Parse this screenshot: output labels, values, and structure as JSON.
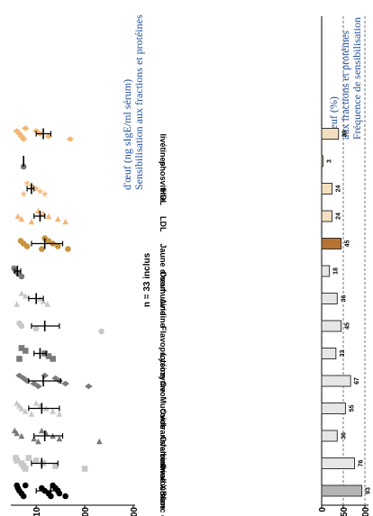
{
  "chart_data": [
    {
      "type": "bar",
      "title": "Fréquence de sensibilisation aux fractions et protéines d'œuf (%)",
      "annotation": "n = 33 inclus",
      "categories": [
        "Blanc d'œuf",
        "Ovalbumine",
        "Ovalbumine X",
        "Ovotransferrine",
        "OvoMucoïde",
        "Lysozyme",
        "Flavoprotéine",
        "Avidine",
        "Ovomucine",
        "Jaune d'œuf",
        "LDL",
        "HDL",
        "phosvitine",
        "livétines"
      ],
      "values": [
        93,
        76,
        36,
        55,
        67,
        33,
        45,
        36,
        18,
        45,
        24,
        24,
        3,
        39
      ],
      "value_labels": [
        "93",
        "76",
        "36",
        "55",
        "67",
        "33",
        "45",
        "36",
        "18",
        "45",
        "24",
        "24",
        "3",
        "39"
      ],
      "ylim": [
        0,
        100
      ],
      "yticks": [
        "0",
        "50",
        "100"
      ],
      "reference_lines": [
        50,
        100
      ],
      "colors": {
        "blanc": "#8c8c8c",
        "blanc_fill": "#b4b4b4",
        "protein": "#e6e6e6",
        "jaune": "#b87333",
        "yolk": "#f2e0c0"
      }
    },
    {
      "type": "scatter",
      "title": "Sensibilisation aux fractions et protéines d'œuf (ng sIgE/ml sérum)",
      "y_scale": "log",
      "yticks": [
        "10",
        "100",
        "1000"
      ],
      "ylim": [
        3,
        1000
      ],
      "categories": [
        "Blanc d'œuf",
        "Ovalbumine",
        "Ovalbumine X",
        "Ovotransferrine",
        "OvoMucoïde",
        "Lysozyme",
        "Flavoprotéine",
        "Avidine",
        "Ovomucine",
        "Jaune d'œuf",
        "LDL",
        "HDL",
        "phosvitine",
        "livétines"
      ],
      "markers": [
        "circle",
        "square",
        "triangle",
        "triangle",
        "diamond",
        "square",
        "circle",
        "triangle",
        "circle",
        "circle",
        "triangle",
        "star",
        "circle",
        "diamond"
      ],
      "colors": [
        "#000000",
        "#c8c8c8",
        "#7a7a7a",
        "#c8c8c8",
        "#7a7a7a",
        "#7a7a7a",
        "#c8c8c8",
        "#c8c8c8",
        "#7a7a7a",
        "#c8943c",
        "#f2b878",
        "#f2b878",
        "#7a7a7a",
        "#f2b878"
      ],
      "points": [
        [
          40,
          30,
          28,
          25,
          22,
          20,
          18,
          15,
          13,
          6,
          5.5,
          5,
          4.5,
          4.2,
          4
        ],
        [
          100,
          25,
          14,
          10,
          7,
          6,
          5.5,
          5,
          4,
          3.8
        ],
        [
          200,
          30,
          22,
          16,
          13,
          11,
          9,
          5,
          4,
          3.6
        ],
        [
          30,
          22,
          16,
          12,
          10,
          8,
          6,
          5,
          4.5,
          4
        ],
        [
          120,
          40,
          30,
          25,
          15,
          11,
          9,
          6.5,
          5.5,
          4.5
        ],
        [
          22,
          18,
          15,
          6,
          5,
          4.5
        ],
        [
          220,
          10,
          5,
          4.5
        ],
        [
          17,
          14,
          12,
          6,
          5,
          4
        ],
        [
          5,
          4.3,
          3.8,
          3.5
        ],
        [
          45,
          28,
          22,
          18,
          15,
          13,
          6.5,
          5.5,
          4.8
        ],
        [
          40,
          28,
          18,
          14,
          11,
          8,
          5,
          4.2
        ],
        [
          15,
          12,
          10,
          8,
          6.5,
          5.5
        ],
        [
          5.5
        ],
        [
          50,
          18,
          12,
          10,
          6,
          5.5,
          5,
          4.5,
          4
        ]
      ],
      "median": [
        20,
        13,
        15,
        13,
        14,
        12,
        15,
        10,
        4.1,
        15,
        12,
        8,
        5.5,
        14
      ],
      "q1": [
        10,
        8,
        9,
        7,
        7,
        9,
        8,
        7,
        3.6,
        8,
        9,
        6.5,
        5.5,
        10
      ],
      "q3": [
        30,
        28,
        35,
        30,
        32,
        16,
        30,
        14,
        4.8,
        35,
        15,
        9,
        5.5,
        20
      ]
    }
  ]
}
